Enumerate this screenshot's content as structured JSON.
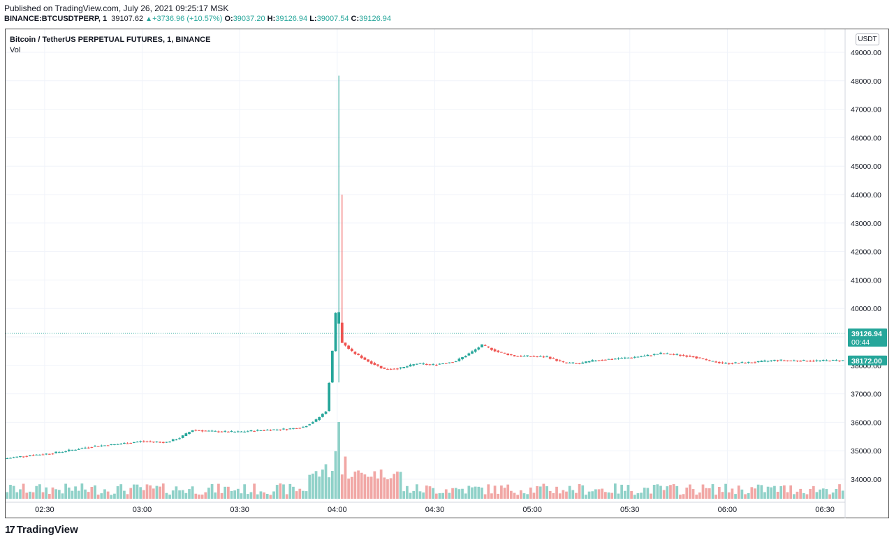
{
  "header": {
    "published": "Published on TradingView.com, July 26, 2021 09:25:17 MSK",
    "symbol": "BINANCE:BTCUSDTPERP, 1",
    "last": "39107.62",
    "change": "+3736.96 (+10.57%)",
    "o_label": "O:",
    "o": "39037.20",
    "h_label": "H:",
    "h": "39126.94",
    "l_label": "L:",
    "l": "39007.54",
    "c_label": "C:",
    "c": "39126.94"
  },
  "legend": {
    "title": "Bitcoin / TetherUS PERPETUAL FUTURES, 1, BINANCE",
    "volume": "Vol"
  },
  "price_axis": {
    "unit": "USDT"
  },
  "footer": {
    "logo_text": "TradingView",
    "logo_icon": "tradingview-logo-icon"
  },
  "colors": {
    "up": "#26a69a",
    "down": "#ef5350",
    "up_vol": "#8fd1c8",
    "down_vol": "#f1a7a5",
    "grid": "#f0f3fa"
  },
  "chart_data": {
    "type": "candlestick",
    "interval": "1 minute",
    "x_tick_labels": [
      "02:30",
      "03:00",
      "03:30",
      "04:00",
      "04:30",
      "05:00",
      "05:30",
      "06:00",
      "06:30"
    ],
    "y_tick_labels": [
      "34000.00",
      "35000.00",
      "36000.00",
      "37000.00",
      "38000.00",
      "39000.00",
      "40000.00",
      "41000.00",
      "42000.00",
      "43000.00",
      "44000.00",
      "45000.00",
      "46000.00",
      "47000.00",
      "48000.00",
      "49000.00"
    ],
    "ylim": [
      33200,
      49500
    ],
    "x_range": [
      "02:18",
      "06:36"
    ],
    "grid": true,
    "price_labels": [
      {
        "value": 39126.94,
        "text": "39126.94",
        "sub": "00:44",
        "color": "#26a69a",
        "dotted_line": true
      },
      {
        "value": 38172.0,
        "text": "38172.00",
        "color": "#26a69a"
      }
    ],
    "volume_series": {
      "name": "Vol",
      "note": "volume histogram at bottom of pane, no axis",
      "peaks": [
        {
          "time": "04:00",
          "relative": 1.0
        },
        {
          "time": "03:59",
          "relative": 0.62
        },
        {
          "time": "04:02",
          "relative": 0.55
        },
        {
          "time": "03:56",
          "relative": 0.45
        }
      ]
    },
    "price_path": [
      [
        "02:18",
        34720
      ],
      [
        "02:25",
        34830
      ],
      [
        "02:32",
        34900
      ],
      [
        "02:38",
        35010
      ],
      [
        "02:45",
        35150
      ],
      [
        "02:52",
        35220
      ],
      [
        "03:00",
        35330
      ],
      [
        "03:08",
        35300
      ],
      [
        "03:12",
        35450
      ],
      [
        "03:16",
        35730
      ],
      [
        "03:22",
        35680
      ],
      [
        "03:30",
        35660
      ],
      [
        "03:38",
        35730
      ],
      [
        "03:45",
        35760
      ],
      [
        "03:50",
        35830
      ],
      [
        "03:54",
        36080
      ],
      [
        "03:57",
        36400
      ],
      [
        "03:58",
        37400
      ],
      [
        "03:59",
        38500
      ],
      [
        "04:00",
        39870
      ],
      [
        "04:01",
        39500
      ],
      [
        "04:02",
        38800
      ],
      [
        "04:05",
        38480
      ],
      [
        "04:10",
        38140
      ],
      [
        "04:15",
        37870
      ],
      [
        "04:20",
        37900
      ],
      [
        "04:25",
        38060
      ],
      [
        "04:30",
        38020
      ],
      [
        "04:37",
        38150
      ],
      [
        "04:42",
        38480
      ],
      [
        "04:45",
        38710
      ],
      [
        "04:50",
        38470
      ],
      [
        "04:55",
        38330
      ],
      [
        "05:00",
        38320
      ],
      [
        "05:05",
        38300
      ],
      [
        "05:10",
        38100
      ],
      [
        "05:15",
        38060
      ],
      [
        "05:20",
        38180
      ],
      [
        "05:30",
        38270
      ],
      [
        "05:35",
        38330
      ],
      [
        "05:40",
        38420
      ],
      [
        "05:45",
        38370
      ],
      [
        "05:50",
        38310
      ],
      [
        "05:55",
        38150
      ],
      [
        "06:00",
        38070
      ],
      [
        "06:05",
        38090
      ],
      [
        "06:10",
        38120
      ],
      [
        "06:15",
        38180
      ],
      [
        "06:25",
        38160
      ],
      [
        "06:35",
        38172
      ]
    ],
    "wicks": [
      {
        "time": "04:00",
        "high": 48180,
        "low": 37400,
        "color": "up"
      },
      {
        "time": "04:01",
        "high": 44000,
        "low": 38900,
        "color": "down"
      }
    ]
  }
}
